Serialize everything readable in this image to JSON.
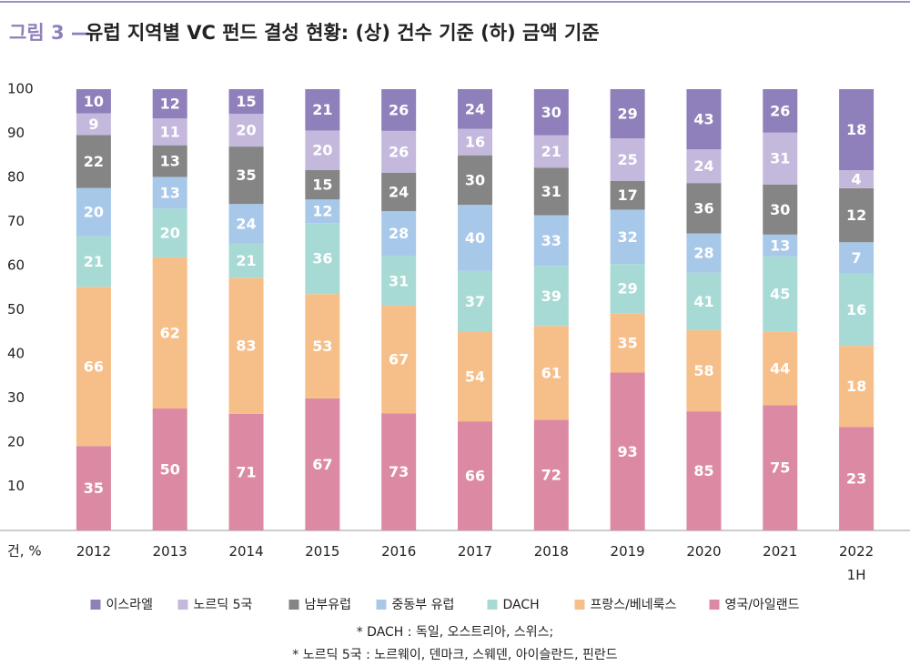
{
  "chart_data": {
    "type": "bar",
    "stacking": "percent",
    "figure_label": "그림 3 —",
    "title": "유럽 지역별 VC 펀드 결성 현황: (상) 건수 기준 (하) 금액 기준",
    "x_label": "건, %",
    "categories": [
      "2012",
      "2013",
      "2014",
      "2015",
      "2016",
      "2017",
      "2018",
      "2019",
      "2020",
      "2021",
      "2022\n1H"
    ],
    "series": [
      {
        "name": "이스라엘",
        "color": "#8f7fba",
        "values": [
          10,
          12,
          15,
          21,
          26,
          24,
          30,
          29,
          43,
          26,
          18
        ]
      },
      {
        "name": "노르딕 5국",
        "color": "#c4b9dc",
        "values": [
          9,
          11,
          20,
          20,
          26,
          16,
          21,
          25,
          24,
          31,
          4
        ]
      },
      {
        "name": "남부유럽",
        "color": "#858585",
        "values": [
          22,
          13,
          35,
          15,
          24,
          30,
          31,
          17,
          36,
          30,
          12
        ]
      },
      {
        "name": "중동부 유럽",
        "color": "#a8c8ea",
        "values": [
          20,
          13,
          24,
          12,
          28,
          40,
          33,
          32,
          28,
          13,
          7
        ]
      },
      {
        "name": "DACH",
        "color": "#a8dad5",
        "values": [
          21,
          20,
          21,
          36,
          31,
          37,
          39,
          29,
          41,
          45,
          16
        ]
      },
      {
        "name": "프랑스/베네룩스",
        "color": "#f6bf89",
        "values": [
          66,
          62,
          83,
          53,
          67,
          54,
          61,
          35,
          58,
          44,
          18
        ]
      },
      {
        "name": "영국/아일랜드",
        "color": "#dc8aa3",
        "values": [
          35,
          50,
          71,
          67,
          73,
          66,
          72,
          93,
          85,
          75,
          23
        ]
      }
    ],
    "ylim": [
      0,
      100
    ],
    "yticks": [
      10,
      20,
      30,
      40,
      50,
      60,
      70,
      80,
      90,
      100
    ],
    "legend": "bottom",
    "notes": [
      "* DACH : 독일, 오스트리아, 스위스;",
      "* 노르딕 5국 : 노르웨이, 덴마크, 스웨덴, 아이슬란드, 핀란드"
    ]
  }
}
